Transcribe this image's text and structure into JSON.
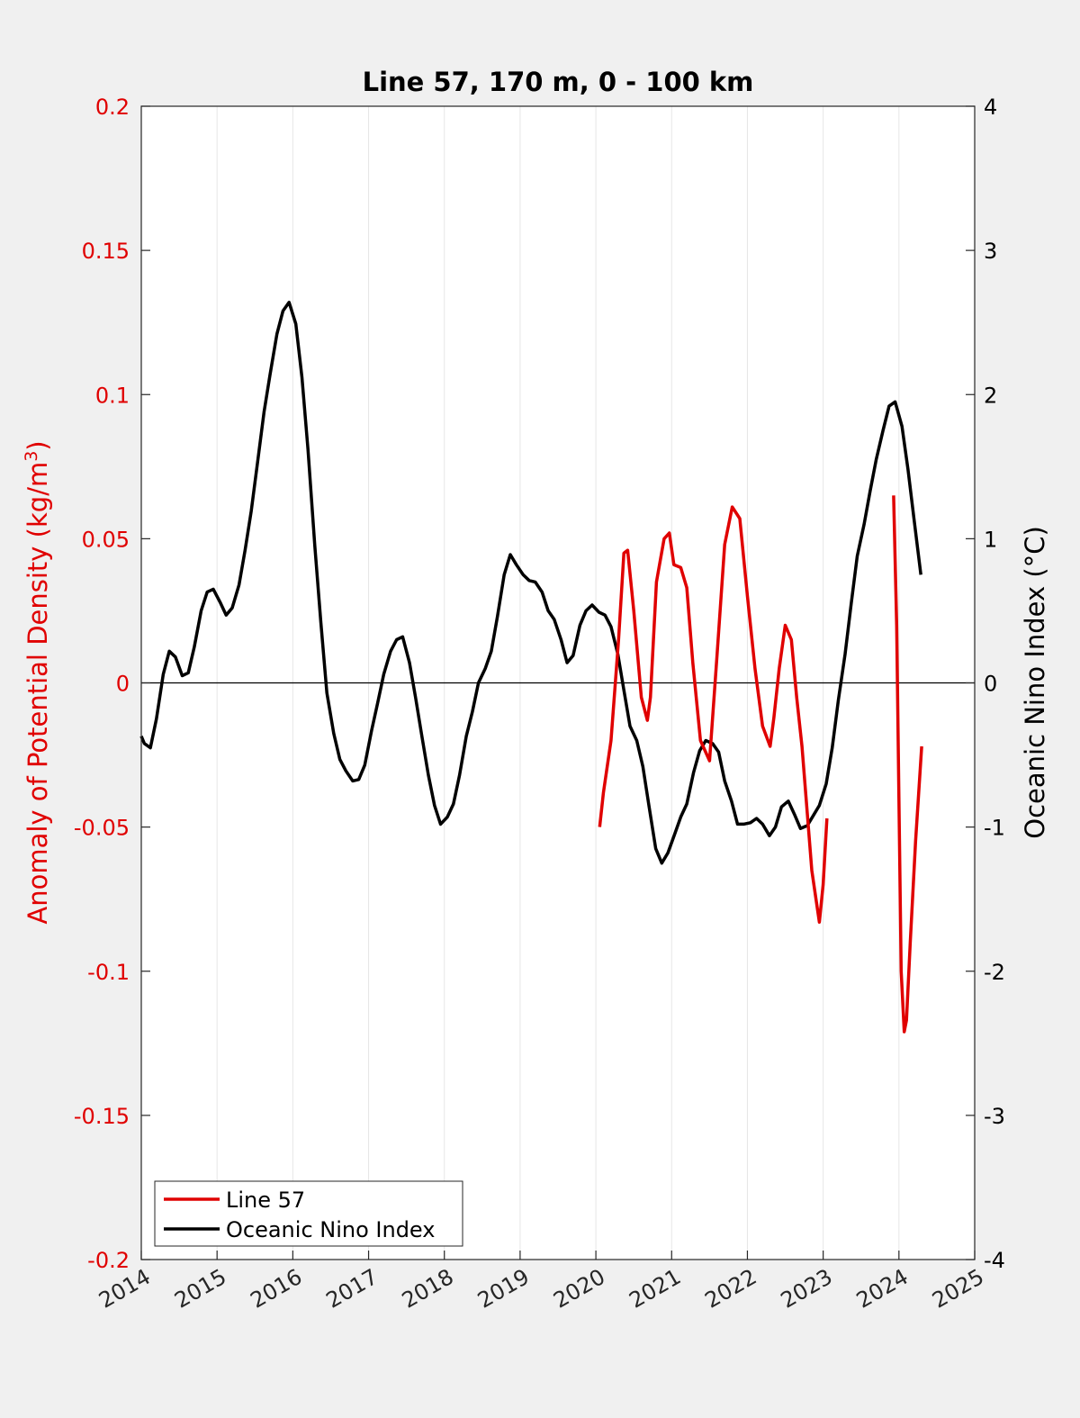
{
  "chart_data": {
    "type": "line",
    "title": "Line 57, 170 m, 0 - 100 km",
    "xlabel": "",
    "xlim": [
      2014,
      2025
    ],
    "x_ticks": [
      "2014",
      "2015",
      "2016",
      "2017",
      "2018",
      "2019",
      "2020",
      "2021",
      "2022",
      "2023",
      "2024",
      "2025"
    ],
    "y_left": {
      "label_main": "Anomaly of Potential Density (kg/m",
      "label_sup": "3",
      "label_end": ")",
      "lim": [
        -0.2,
        0.2
      ],
      "tick_values": [
        -0.2,
        -0.15,
        -0.1,
        -0.05,
        0,
        0.05,
        0.1,
        0.15,
        0.2
      ],
      "tick_labels": [
        "-0.2",
        "-0.15",
        "-0.1",
        "-0.05",
        "0",
        "0.05",
        "0.1",
        "0.15",
        "0.2"
      ],
      "color": "#e00000"
    },
    "y_right": {
      "label": "Oceanic Nino Index (°C)",
      "lim": [
        -4,
        4
      ],
      "tick_values": [
        -4,
        -3,
        -2,
        -1,
        0,
        1,
        2,
        3,
        4
      ],
      "tick_labels": [
        "-4",
        "-3",
        "-2",
        "-1",
        "0",
        "1",
        "2",
        "3",
        "4"
      ],
      "color": "#000000"
    },
    "grid": "vertical",
    "zero_line": true,
    "legend_position": "bottom-left",
    "series": [
      {
        "name": "Line 57",
        "axis": "left",
        "color": "#e00000",
        "segments": [
          {
            "x": [
              2020.05,
              2020.1,
              2020.2,
              2020.3,
              2020.37,
              2020.42,
              2020.5,
              2020.6,
              2020.68,
              2020.72,
              2020.8,
              2020.9,
              2020.97,
              2021.03,
              2021.12,
              2021.2,
              2021.28,
              2021.38,
              2021.5,
              2021.6,
              2021.7,
              2021.8,
              2021.9,
              2022.0,
              2022.1,
              2022.2,
              2022.3,
              2022.35,
              2022.42,
              2022.5,
              2022.58,
              2022.65,
              2022.72,
              2022.85,
              2022.95,
              2023.0,
              2023.05
            ],
            "y": [
              -0.05,
              -0.038,
              -0.02,
              0.015,
              0.045,
              0.046,
              0.025,
              -0.005,
              -0.013,
              -0.005,
              0.035,
              0.05,
              0.052,
              0.041,
              0.04,
              0.033,
              0.007,
              -0.02,
              -0.027,
              0.01,
              0.048,
              0.061,
              0.057,
              0.03,
              0.005,
              -0.015,
              -0.022,
              -0.012,
              0.005,
              0.02,
              0.015,
              -0.005,
              -0.022,
              -0.065,
              -0.083,
              -0.07,
              -0.047
            ]
          },
          {
            "x": [
              2023.93,
              2023.97,
              2024.0,
              2024.03,
              2024.07,
              2024.1,
              2024.15,
              2024.22,
              2024.3
            ],
            "y": [
              0.065,
              0.02,
              -0.04,
              -0.1,
              -0.121,
              -0.117,
              -0.09,
              -0.055,
              -0.022
            ]
          }
        ]
      },
      {
        "name": "Oceanic Nino Index",
        "axis": "right",
        "color": "#000000",
        "segments": [
          {
            "x": [
              2014.0,
              2014.04,
              2014.12,
              2014.2,
              2014.29,
              2014.37,
              2014.45,
              2014.54,
              2014.62,
              2014.7,
              2014.79,
              2014.87,
              2014.95,
              2015.04,
              2015.12,
              2015.2,
              2015.29,
              2015.37,
              2015.45,
              2015.54,
              2015.62,
              2015.7,
              2015.79,
              2015.87,
              2015.95,
              2016.04,
              2016.12,
              2016.2,
              2016.29,
              2016.37,
              2016.45,
              2016.54,
              2016.62,
              2016.7,
              2016.79,
              2016.87,
              2016.95,
              2017.04,
              2017.12,
              2017.2,
              2017.29,
              2017.37,
              2017.45,
              2017.54,
              2017.62,
              2017.7,
              2017.79,
              2017.87,
              2017.95,
              2018.04,
              2018.12,
              2018.2,
              2018.29,
              2018.37,
              2018.45,
              2018.54,
              2018.62,
              2018.7,
              2018.79,
              2018.87,
              2018.95,
              2019.04,
              2019.12,
              2019.2,
              2019.29,
              2019.37,
              2019.45,
              2019.54,
              2019.62,
              2019.7,
              2019.79,
              2019.87,
              2019.95,
              2020.04,
              2020.12,
              2020.2,
              2020.29,
              2020.37,
              2020.45,
              2020.54,
              2020.62,
              2020.7,
              2020.79,
              2020.87,
              2020.95,
              2021.04,
              2021.12,
              2021.2,
              2021.29,
              2021.37,
              2021.45,
              2021.54,
              2021.62,
              2021.7,
              2021.79,
              2021.87,
              2021.95,
              2022.04,
              2022.12,
              2022.2,
              2022.29,
              2022.37,
              2022.45,
              2022.54,
              2022.62,
              2022.7,
              2022.79,
              2022.87,
              2022.95,
              2023.04,
              2023.12,
              2023.2,
              2023.29,
              2023.37,
              2023.45,
              2023.54,
              2023.62,
              2023.7,
              2023.79,
              2023.87,
              2023.95,
              2024.04,
              2024.12,
              2024.2,
              2024.29
            ],
            "y": [
              -0.37,
              -0.42,
              -0.45,
              -0.25,
              0.06,
              0.22,
              0.18,
              0.05,
              0.07,
              0.25,
              0.5,
              0.63,
              0.65,
              0.56,
              0.47,
              0.52,
              0.68,
              0.92,
              1.19,
              1.55,
              1.88,
              2.14,
              2.42,
              2.58,
              2.64,
              2.49,
              2.12,
              1.62,
              0.95,
              0.42,
              -0.07,
              -0.35,
              -0.53,
              -0.61,
              -0.68,
              -0.67,
              -0.57,
              -0.33,
              -0.14,
              0.06,
              0.22,
              0.3,
              0.32,
              0.14,
              -0.1,
              -0.36,
              -0.64,
              -0.85,
              -0.98,
              -0.93,
              -0.84,
              -0.64,
              -0.37,
              -0.2,
              0.0,
              0.1,
              0.22,
              0.46,
              0.75,
              0.89,
              0.82,
              0.75,
              0.71,
              0.7,
              0.63,
              0.5,
              0.44,
              0.3,
              0.14,
              0.19,
              0.4,
              0.5,
              0.54,
              0.49,
              0.47,
              0.39,
              0.2,
              -0.05,
              -0.3,
              -0.4,
              -0.58,
              -0.85,
              -1.15,
              -1.25,
              -1.18,
              -1.05,
              -0.93,
              -0.84,
              -0.62,
              -0.47,
              -0.4,
              -0.42,
              -0.48,
              -0.68,
              -0.82,
              -0.98,
              -0.98,
              -0.97,
              -0.94,
              -0.98,
              -1.06,
              -1.0,
              -0.86,
              -0.82,
              -0.91,
              -1.01,
              -0.99,
              -0.92,
              -0.85,
              -0.7,
              -0.45,
              -0.12,
              0.2,
              0.55,
              0.88,
              1.1,
              1.33,
              1.55,
              1.75,
              1.92,
              1.95,
              1.78,
              1.48,
              1.13,
              0.75
            ]
          }
        ]
      }
    ]
  }
}
